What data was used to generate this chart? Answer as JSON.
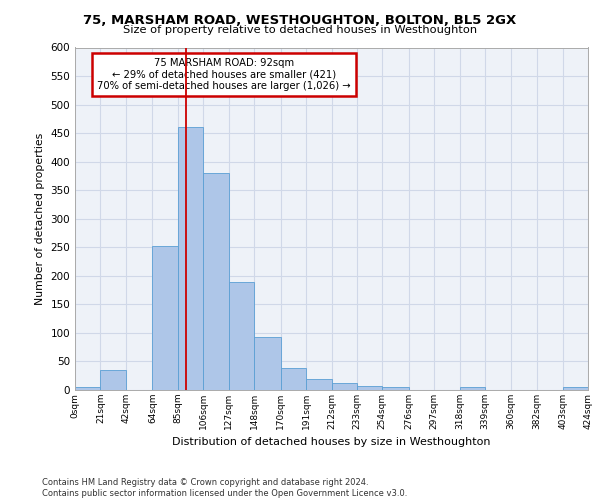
{
  "title": "75, MARSHAM ROAD, WESTHOUGHTON, BOLTON, BL5 2GX",
  "subtitle": "Size of property relative to detached houses in Westhoughton",
  "xlabel": "Distribution of detached houses by size in Westhoughton",
  "ylabel": "Number of detached properties",
  "bar_color": "#aec6e8",
  "bar_edge_color": "#5a9fd4",
  "grid_color": "#d0d8e8",
  "background_color": "#eef2f8",
  "property_line_value": 92,
  "annotation_text": "75 MARSHAM ROAD: 92sqm\n← 29% of detached houses are smaller (421)\n70% of semi-detached houses are larger (1,026) →",
  "annotation_box_color": "#cc0000",
  "bin_edges": [
    0,
    21,
    42,
    64,
    85,
    106,
    127,
    148,
    170,
    191,
    212,
    233,
    254,
    276,
    297,
    318,
    339,
    360,
    382,
    403,
    424
  ],
  "bar_heights": [
    5,
    35,
    0,
    252,
    460,
    381,
    190,
    92,
    38,
    20,
    13,
    7,
    6,
    0,
    0,
    5,
    0,
    0,
    0,
    5
  ],
  "ylim": [
    0,
    600
  ],
  "yticks": [
    0,
    50,
    100,
    150,
    200,
    250,
    300,
    350,
    400,
    450,
    500,
    550,
    600
  ],
  "footer_text": "Contains HM Land Registry data © Crown copyright and database right 2024.\nContains public sector information licensed under the Open Government Licence v3.0.",
  "tick_labels": [
    "0sqm",
    "21sqm",
    "42sqm",
    "64sqm",
    "85sqm",
    "106sqm",
    "127sqm",
    "148sqm",
    "170sqm",
    "191sqm",
    "212sqm",
    "233sqm",
    "254sqm",
    "276sqm",
    "297sqm",
    "318sqm",
    "339sqm",
    "360sqm",
    "382sqm",
    "403sqm",
    "424sqm"
  ]
}
